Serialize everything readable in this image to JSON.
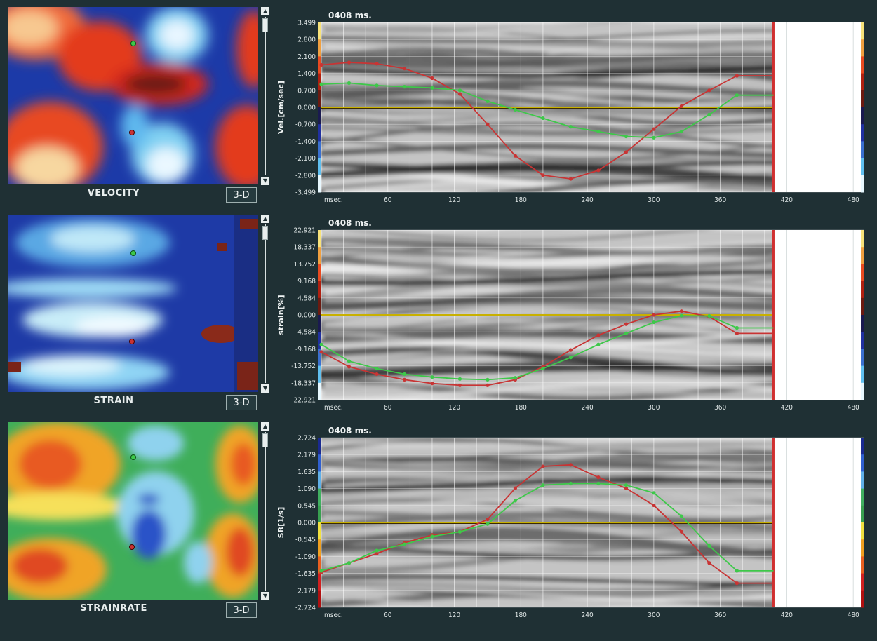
{
  "panels": [
    {
      "map_label": "VELOCITY",
      "button_label": "3-D",
      "time_label": "0408 ms.",
      "ylabel": "Vel.[cm/sec]",
      "x_unit_label": "msec.",
      "colorbar": [
        "#f7e27a",
        "#f0a040",
        "#e84a20",
        "#b02010",
        "#6b1a10",
        "#1a1a50",
        "#2030a0",
        "#3a70d0",
        "#60c0f0",
        "#e8f8ff"
      ]
    },
    {
      "map_label": "STRAIN",
      "button_label": "3-D",
      "time_label": "0408 ms.",
      "ylabel": "strain[%]",
      "x_unit_label": "msec.",
      "colorbar": [
        "#f7e27a",
        "#f0a040",
        "#e84a20",
        "#b02010",
        "#6b1a10",
        "#1a1a50",
        "#2030a0",
        "#3a70d0",
        "#60c0f0",
        "#e8f8ff"
      ]
    },
    {
      "map_label": "STRAINRATE",
      "button_label": "3-D",
      "time_label": "0408 ms.",
      "ylabel": "SR[1/s]",
      "x_unit_label": "msec.",
      "colorbar": [
        "#1a2a90",
        "#3060d0",
        "#60b0e8",
        "#40b060",
        "#38a050",
        "#f0e040",
        "#f0a020",
        "#e86020",
        "#d02020",
        "#b01010"
      ]
    }
  ],
  "colors": {
    "green_trace": "#3ec84a",
    "red_trace": "#c83434",
    "zero_line": "#c8b000",
    "cursor": "#d03030"
  },
  "chart_data": [
    {
      "type": "line",
      "ylabel": "Vel.[cm/sec]",
      "yticks": [
        "3.499",
        "2.800",
        "2.100",
        "1.400",
        "0.700",
        "0.000",
        "-0.700",
        "-1.400",
        "-2.100",
        "-2.800",
        "-3.499"
      ],
      "ylim": [
        -3.499,
        3.499
      ],
      "xticks": [
        "60",
        "120",
        "180",
        "240",
        "300",
        "360",
        "420",
        "480"
      ],
      "xlim": [
        0,
        490
      ],
      "cursor_x": 408,
      "series": [
        {
          "color": "red",
          "points": [
            [
              0,
              1.75
            ],
            [
              25,
              1.85
            ],
            [
              50,
              1.8
            ],
            [
              75,
              1.6
            ],
            [
              100,
              1.2
            ],
            [
              125,
              0.55
            ],
            [
              150,
              -0.7
            ],
            [
              175,
              -2.0
            ],
            [
              200,
              -2.8
            ],
            [
              225,
              -2.95
            ],
            [
              250,
              -2.6
            ],
            [
              275,
              -1.85
            ],
            [
              300,
              -0.9
            ],
            [
              325,
              0.05
            ],
            [
              350,
              0.7
            ],
            [
              375,
              1.3
            ],
            [
              408,
              1.3
            ]
          ]
        },
        {
          "color": "green",
          "points": [
            [
              0,
              0.95
            ],
            [
              25,
              1.0
            ],
            [
              50,
              0.9
            ],
            [
              75,
              0.85
            ],
            [
              100,
              0.8
            ],
            [
              125,
              0.7
            ],
            [
              150,
              0.25
            ],
            [
              175,
              -0.1
            ],
            [
              200,
              -0.45
            ],
            [
              225,
              -0.8
            ],
            [
              250,
              -1.0
            ],
            [
              275,
              -1.2
            ],
            [
              300,
              -1.25
            ],
            [
              325,
              -1.0
            ],
            [
              350,
              -0.3
            ],
            [
              375,
              0.5
            ],
            [
              408,
              0.5
            ]
          ]
        }
      ]
    },
    {
      "type": "line",
      "ylabel": "strain[%]",
      "yticks": [
        "22.921",
        "18.337",
        "13.752",
        "9.168",
        "4.584",
        "0.000",
        "-4.584",
        "-9.168",
        "-13.752",
        "-18.337",
        "-22.921"
      ],
      "ylim": [
        -22.921,
        22.921
      ],
      "xticks": [
        "60",
        "120",
        "180",
        "240",
        "300",
        "360",
        "420",
        "480"
      ],
      "xlim": [
        0,
        490
      ],
      "cursor_x": 408,
      "series": [
        {
          "color": "red",
          "points": [
            [
              0,
              -10
            ],
            [
              25,
              -14
            ],
            [
              50,
              -16
            ],
            [
              75,
              -17.5
            ],
            [
              100,
              -18.5
            ],
            [
              125,
              -19
            ],
            [
              150,
              -19
            ],
            [
              175,
              -17.5
            ],
            [
              200,
              -14
            ],
            [
              225,
              -9.5
            ],
            [
              250,
              -5.5
            ],
            [
              275,
              -2.5
            ],
            [
              300,
              0
            ],
            [
              325,
              1
            ],
            [
              350,
              -0.5
            ],
            [
              375,
              -5
            ],
            [
              408,
              -5
            ]
          ]
        },
        {
          "color": "green",
          "points": [
            [
              0,
              -8
            ],
            [
              25,
              -12.5
            ],
            [
              50,
              -14.5
            ],
            [
              75,
              -16
            ],
            [
              100,
              -16.8
            ],
            [
              125,
              -17.3
            ],
            [
              150,
              -17.5
            ],
            [
              175,
              -17
            ],
            [
              200,
              -14.5
            ],
            [
              225,
              -11.5
            ],
            [
              250,
              -8
            ],
            [
              275,
              -5
            ],
            [
              300,
              -2
            ],
            [
              325,
              -0.2
            ],
            [
              350,
              -0.3
            ],
            [
              375,
              -3.5
            ],
            [
              408,
              -3.5
            ]
          ]
        }
      ]
    },
    {
      "type": "line",
      "ylabel": "SR[1/s]",
      "yticks": [
        "2.724",
        "2.179",
        "1.635",
        "1.090",
        "0.545",
        "0.000",
        "-0.545",
        "-1.090",
        "-1.635",
        "-2.179",
        "-2.724"
      ],
      "ylim": [
        -2.724,
        2.724
      ],
      "xticks": [
        "60",
        "120",
        "180",
        "240",
        "300",
        "360",
        "420",
        "480"
      ],
      "xlim": [
        0,
        490
      ],
      "cursor_x": 408,
      "series": [
        {
          "color": "red",
          "points": [
            [
              0,
              -1.6
            ],
            [
              25,
              -1.3
            ],
            [
              50,
              -1.0
            ],
            [
              75,
              -0.65
            ],
            [
              100,
              -0.4
            ],
            [
              125,
              -0.3
            ],
            [
              150,
              0.1
            ],
            [
              175,
              1.1
            ],
            [
              200,
              1.8
            ],
            [
              225,
              1.85
            ],
            [
              250,
              1.45
            ],
            [
              275,
              1.1
            ],
            [
              300,
              0.55
            ],
            [
              325,
              -0.3
            ],
            [
              350,
              -1.3
            ],
            [
              375,
              -1.95
            ],
            [
              408,
              -1.95
            ]
          ]
        },
        {
          "color": "green",
          "points": [
            [
              0,
              -1.55
            ],
            [
              25,
              -1.3
            ],
            [
              50,
              -0.9
            ],
            [
              75,
              -0.7
            ],
            [
              100,
              -0.45
            ],
            [
              125,
              -0.3
            ],
            [
              150,
              -0.05
            ],
            [
              175,
              0.7
            ],
            [
              200,
              1.2
            ],
            [
              225,
              1.25
            ],
            [
              250,
              1.25
            ],
            [
              275,
              1.2
            ],
            [
              300,
              0.95
            ],
            [
              325,
              0.2
            ],
            [
              350,
              -0.75
            ],
            [
              375,
              -1.55
            ],
            [
              408,
              -1.55
            ]
          ]
        }
      ]
    }
  ]
}
